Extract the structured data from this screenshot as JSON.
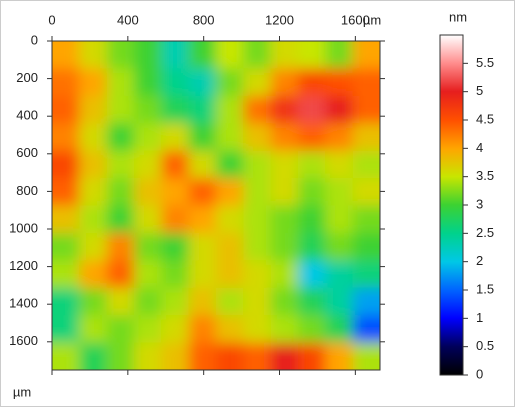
{
  "chart_data": {
    "type": "heatmap",
    "x_label": "µm",
    "y_label": "µm",
    "z_label": "nm",
    "xlim": [
      0,
      1730
    ],
    "ylim": [
      0,
      1750
    ],
    "zlim": [
      0,
      6
    ],
    "xticks": [
      0,
      400,
      800,
      1200,
      1600
    ],
    "yticks": [
      0,
      200,
      400,
      600,
      800,
      1000,
      1200,
      1400,
      1600
    ],
    "zticks": [
      0,
      0.5,
      1,
      1.5,
      2,
      2.5,
      3,
      3.5,
      4,
      4.5,
      5,
      5.5
    ],
    "colorscale": [
      [
        0,
        "#000000"
      ],
      [
        0.5,
        "#00005a"
      ],
      [
        1,
        "#0000ff"
      ],
      [
        1.5,
        "#0064ff"
      ],
      [
        2,
        "#00c8e6"
      ],
      [
        2.5,
        "#00d28c"
      ],
      [
        3,
        "#3cd232"
      ],
      [
        3.5,
        "#c8e600"
      ],
      [
        4,
        "#ffa500"
      ],
      [
        4.5,
        "#ff5000"
      ],
      [
        5,
        "#e61e1e"
      ],
      [
        5.5,
        "#ff8c8c"
      ],
      [
        6,
        "#ffffff"
      ]
    ],
    "z": [
      [
        4.0,
        3.6,
        3.2,
        3.0,
        2.3,
        3.0,
        3.5,
        3.2,
        3.6,
        3.5,
        3.2,
        4.0
      ],
      [
        4.3,
        4.0,
        3.4,
        3.0,
        2.5,
        2.3,
        3.2,
        3.6,
        4.2,
        4.6,
        4.5,
        4.4
      ],
      [
        4.4,
        3.8,
        3.4,
        3.2,
        2.8,
        2.6,
        3.4,
        4.3,
        4.8,
        5.2,
        5.0,
        4.4
      ],
      [
        4.2,
        3.6,
        3.0,
        3.4,
        3.6,
        3.0,
        3.4,
        3.8,
        4.2,
        4.4,
        4.2,
        3.8
      ],
      [
        4.6,
        3.8,
        3.4,
        3.6,
        4.4,
        3.6,
        3.0,
        3.4,
        3.6,
        3.4,
        3.6,
        3.4
      ],
      [
        4.4,
        3.6,
        3.2,
        3.8,
        4.0,
        4.4,
        4.0,
        3.4,
        3.6,
        3.2,
        3.4,
        3.6
      ],
      [
        3.8,
        3.4,
        3.0,
        3.6,
        4.2,
        4.0,
        3.6,
        3.4,
        3.2,
        3.0,
        3.4,
        3.2
      ],
      [
        3.2,
        3.6,
        4.2,
        3.2,
        3.0,
        3.6,
        3.8,
        3.4,
        3.2,
        2.8,
        3.2,
        3.0
      ],
      [
        3.4,
        4.0,
        4.4,
        3.4,
        3.2,
        3.6,
        3.8,
        3.6,
        3.4,
        2.0,
        2.4,
        2.6
      ],
      [
        2.6,
        3.2,
        3.6,
        3.2,
        3.4,
        3.8,
        3.4,
        3.6,
        3.2,
        2.8,
        2.4,
        1.8
      ],
      [
        2.6,
        3.4,
        3.2,
        3.4,
        3.6,
        4.2,
        3.8,
        3.6,
        3.4,
        3.2,
        2.8,
        1.4
      ],
      [
        3.4,
        2.8,
        3.2,
        3.6,
        3.8,
        4.4,
        4.6,
        4.4,
        5.0,
        4.6,
        4.0,
        3.4
      ]
    ]
  }
}
